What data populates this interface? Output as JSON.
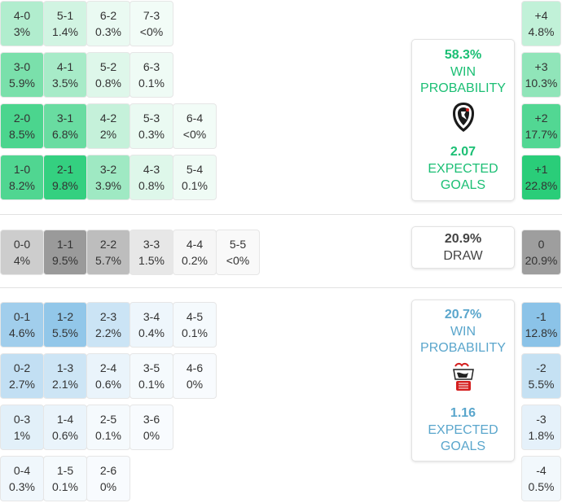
{
  "colors": {
    "home_accent": "#1bbf74",
    "away_accent": "#5aa6cc",
    "draw_text": "#444444"
  },
  "home": {
    "win_pct": "58.3%",
    "win_label": "WIN PROBABILITY",
    "logo_icon": "freiburg-crest-icon",
    "xg": "2.07",
    "xg_label": "EXPECTED GOALS"
  },
  "draw": {
    "pct": "20.9%",
    "label": "DRAW"
  },
  "away": {
    "win_pct": "20.7%",
    "win_label": "WIN PROBABILITY",
    "logo_icon": "koln-crest-icon",
    "xg": "1.16",
    "xg_label": "EXPECTED GOALS"
  },
  "chart_data": {
    "type": "heatmap",
    "home_scores": [
      {
        "score": "4-0",
        "pct": "3%",
        "value": 3
      },
      {
        "score": "5-1",
        "pct": "1.4%",
        "value": 1.4
      },
      {
        "score": "6-2",
        "pct": "0.3%",
        "value": 0.3
      },
      {
        "score": "7-3",
        "pct": "<0%",
        "value": 0
      },
      {
        "score": "3-0",
        "pct": "5.9%",
        "value": 5.9
      },
      {
        "score": "4-1",
        "pct": "3.5%",
        "value": 3.5
      },
      {
        "score": "5-2",
        "pct": "0.8%",
        "value": 0.8
      },
      {
        "score": "6-3",
        "pct": "0.1%",
        "value": 0.1
      },
      {
        "score": "2-0",
        "pct": "8.5%",
        "value": 8.5
      },
      {
        "score": "3-1",
        "pct": "6.8%",
        "value": 6.8
      },
      {
        "score": "4-2",
        "pct": "2%",
        "value": 2
      },
      {
        "score": "5-3",
        "pct": "0.3%",
        "value": 0.3
      },
      {
        "score": "6-4",
        "pct": "<0%",
        "value": 0
      },
      {
        "score": "1-0",
        "pct": "8.2%",
        "value": 8.2
      },
      {
        "score": "2-1",
        "pct": "9.8%",
        "value": 9.8
      },
      {
        "score": "3-2",
        "pct": "3.9%",
        "value": 3.9
      },
      {
        "score": "4-3",
        "pct": "0.8%",
        "value": 0.8
      },
      {
        "score": "5-4",
        "pct": "0.1%",
        "value": 0.1
      }
    ],
    "draw_scores": [
      {
        "score": "0-0",
        "pct": "4%",
        "value": 4
      },
      {
        "score": "1-1",
        "pct": "9.5%",
        "value": 9.5
      },
      {
        "score": "2-2",
        "pct": "5.7%",
        "value": 5.7
      },
      {
        "score": "3-3",
        "pct": "1.5%",
        "value": 1.5
      },
      {
        "score": "4-4",
        "pct": "0.2%",
        "value": 0.2
      },
      {
        "score": "5-5",
        "pct": "<0%",
        "value": 0
      }
    ],
    "away_scores": [
      {
        "score": "0-1",
        "pct": "4.6%",
        "value": 4.6
      },
      {
        "score": "1-2",
        "pct": "5.5%",
        "value": 5.5
      },
      {
        "score": "2-3",
        "pct": "2.2%",
        "value": 2.2
      },
      {
        "score": "3-4",
        "pct": "0.4%",
        "value": 0.4
      },
      {
        "score": "4-5",
        "pct": "0.1%",
        "value": 0.1
      },
      {
        "score": "0-2",
        "pct": "2.7%",
        "value": 2.7
      },
      {
        "score": "1-3",
        "pct": "2.1%",
        "value": 2.1
      },
      {
        "score": "2-4",
        "pct": "0.6%",
        "value": 0.6
      },
      {
        "score": "3-5",
        "pct": "0.1%",
        "value": 0.1
      },
      {
        "score": "4-6",
        "pct": "0%",
        "value": 0
      },
      {
        "score": "0-3",
        "pct": "1%",
        "value": 1
      },
      {
        "score": "1-4",
        "pct": "0.6%",
        "value": 0.6
      },
      {
        "score": "2-5",
        "pct": "0.1%",
        "value": 0.1
      },
      {
        "score": "3-6",
        "pct": "0%",
        "value": 0
      },
      {
        "score": "0-4",
        "pct": "0.3%",
        "value": 0.3
      },
      {
        "score": "1-5",
        "pct": "0.1%",
        "value": 0.1
      },
      {
        "score": "2-6",
        "pct": "0%",
        "value": 0
      }
    ],
    "goal_differences": [
      {
        "diff": "+4",
        "pct": "4.8%",
        "value": 4.8,
        "side": "home"
      },
      {
        "diff": "+3",
        "pct": "10.3%",
        "value": 10.3,
        "side": "home"
      },
      {
        "diff": "+2",
        "pct": "17.7%",
        "value": 17.7,
        "side": "home"
      },
      {
        "diff": "+1",
        "pct": "22.8%",
        "value": 22.8,
        "side": "home"
      },
      {
        "diff": "0",
        "pct": "20.9%",
        "value": 20.9,
        "side": "draw"
      },
      {
        "diff": "-1",
        "pct": "12.8%",
        "value": 12.8,
        "side": "away"
      },
      {
        "diff": "-2",
        "pct": "5.5%",
        "value": 5.5,
        "side": "away"
      },
      {
        "diff": "-3",
        "pct": "1.8%",
        "value": 1.8,
        "side": "away"
      },
      {
        "diff": "-4",
        "pct": "0.5%",
        "value": 0.5,
        "side": "away"
      }
    ]
  }
}
